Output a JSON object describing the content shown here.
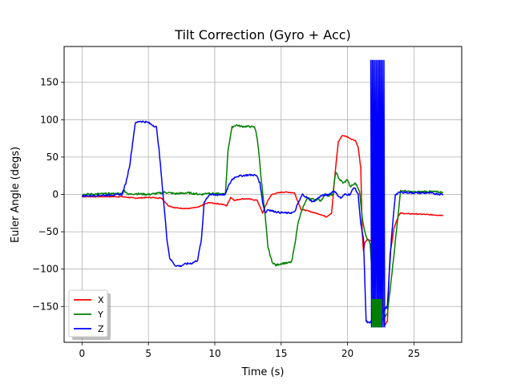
{
  "chart_data": {
    "type": "line",
    "title": "Tilt Correction (Gyro + Acc)",
    "xlabel": "Time (s)",
    "ylabel": "Euler Angle (degs)",
    "xlim": [
      -1.35,
      28.6
    ],
    "ylim": [
      -198,
      198
    ],
    "xticks": [
      0,
      5,
      10,
      15,
      20,
      25
    ],
    "xtick_labels": [
      "0",
      "5",
      "10",
      "15",
      "20",
      "25"
    ],
    "yticks": [
      -150,
      -100,
      -50,
      0,
      50,
      100,
      150
    ],
    "ytick_labels": [
      "−150",
      "−100",
      "−50",
      "0",
      "50",
      "100",
      "150"
    ],
    "grid": true,
    "legend_position": "lower-left",
    "series": [
      {
        "name": "X",
        "color": "#ff0000",
        "x": [
          0,
          3,
          4,
          5,
          6,
          6.5,
          7,
          8,
          8.8,
          9.2,
          9.6,
          10,
          10.5,
          10.9,
          11.2,
          11.5,
          12,
          12.5,
          13.2,
          13.6,
          14,
          14.3,
          15,
          15.5,
          16,
          16.5,
          17,
          18,
          18.4,
          18.8,
          19.1,
          19.3,
          19.6,
          20,
          20.3,
          20.6,
          20.8,
          21,
          21.1,
          21.2,
          21.3,
          21.5,
          21.7,
          22,
          22.5,
          22.8,
          23,
          23.2,
          23.5,
          23.8,
          24,
          24.5,
          25,
          26,
          27.2
        ],
        "y": [
          -3,
          -3,
          -5,
          -4,
          -5,
          -15,
          -18,
          -19,
          -17,
          -13,
          -11,
          -12,
          -13,
          -15,
          -4,
          -8,
          -6,
          -6,
          -8,
          -25,
          -8,
          0,
          3,
          3,
          2,
          -20,
          -22,
          -27,
          -30,
          -25,
          35,
          70,
          79,
          77,
          74,
          72,
          63,
          35,
          -50,
          -75,
          -65,
          -60,
          -62,
          -60,
          -120,
          -175,
          -170,
          -80,
          -45,
          -30,
          -25,
          -26,
          -26,
          -27,
          -28
        ]
      },
      {
        "name": "Y",
        "color": "#008000",
        "x": [
          0,
          2,
          3,
          3.2,
          3.5,
          4,
          5,
          6,
          6.2,
          7,
          8,
          9,
          9.5,
          10,
          10.8,
          11,
          11.3,
          11.6,
          12,
          12.5,
          13,
          13.1,
          13.3,
          13.5,
          13.8,
          14,
          14.3,
          14.6,
          14.9,
          15.2,
          15.5,
          15.8,
          16,
          16.3,
          16.7,
          17,
          18,
          18.3,
          18.6,
          18.9,
          19.1,
          19.4,
          19.7,
          20,
          20.2,
          20.6,
          20.9,
          21.1,
          21.3,
          21.5,
          21.7,
          22,
          22.5,
          23,
          23.5,
          24,
          25,
          26,
          27,
          27.2
        ],
        "y": [
          0,
          1,
          1,
          5,
          0,
          1,
          0,
          2,
          3,
          1,
          2,
          0,
          2,
          1,
          0,
          60,
          90,
          93,
          91,
          91,
          90,
          85,
          60,
          20,
          -30,
          -70,
          -90,
          -95,
          -93,
          -92,
          -92,
          -90,
          -70,
          -35,
          -15,
          -5,
          -8,
          0,
          -2,
          0,
          30,
          20,
          15,
          20,
          10,
          15,
          5,
          -30,
          -50,
          -60,
          -65,
          -150,
          -170,
          -160,
          -80,
          5,
          3,
          4,
          3,
          3
        ]
      },
      {
        "name": "Z",
        "color": "#0000ff",
        "x": [
          0,
          2,
          3,
          3.3,
          3.6,
          4,
          4.3,
          4.8,
          5,
          5.6,
          5.8,
          6,
          6.2,
          6.4,
          6.6,
          7,
          7.4,
          7.8,
          8.3,
          8.7,
          9,
          9.2,
          9.6,
          10,
          10.5,
          10.8,
          11,
          11.3,
          11.6,
          12,
          12.5,
          13,
          13.2,
          13.4,
          13.6,
          13.8,
          14,
          14.3,
          14.8,
          15.5,
          16,
          16.2,
          16.6,
          17,
          17.4,
          18,
          18.3,
          18.6,
          19,
          19.2,
          19.5,
          19.8,
          20.2,
          20.5,
          20.8,
          21,
          21.2,
          21.4,
          21.6,
          21.8,
          22,
          22.5,
          23,
          23.3,
          23.6,
          24,
          25,
          26,
          27.2
        ],
        "y": [
          -2,
          -1,
          0,
          15,
          40,
          95,
          98,
          97,
          96,
          90,
          60,
          20,
          -20,
          -60,
          -85,
          -95,
          -96,
          -93,
          -92,
          -88,
          -60,
          -10,
          0,
          -1,
          0,
          0,
          10,
          20,
          24,
          25,
          26,
          26,
          24,
          15,
          -10,
          -25,
          -20,
          -22,
          -24,
          -25,
          -24,
          -15,
          0,
          -5,
          -10,
          -2,
          -1,
          0,
          5,
          0,
          -5,
          0,
          0,
          10,
          0,
          -40,
          -60,
          -170,
          -172,
          -170,
          -173,
          -160,
          -150,
          -60,
          0,
          3,
          2,
          2,
          0
        ]
      }
    ],
    "oscillation_bands": [
      {
        "series": "Z",
        "x_start": 21.75,
        "x_end": 22.8,
        "ymin": -178,
        "ymax": 180,
        "period": 0.11
      },
      {
        "series": "Y",
        "x_start": 21.85,
        "x_end": 22.6,
        "ymin": -178,
        "ymax": -140,
        "period": 0.09
      }
    ]
  }
}
